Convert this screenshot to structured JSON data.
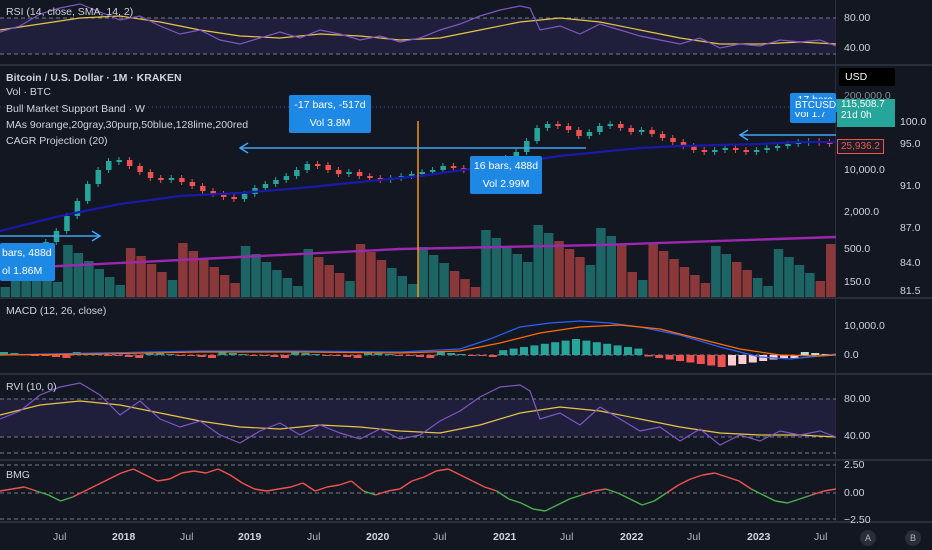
{
  "rsi": {
    "label": "RSI (14, close, SMA, 14, 2)",
    "ticks": [
      "80.00",
      "40.00"
    ]
  },
  "main": {
    "title": "Bitcoin / U.S. Dollar · 1M · KRAKEN",
    "legend": [
      "Vol · BTC",
      "Bull Market Support Band · W",
      "MAs 9orange,20gray,30purp,50blue,128lime,200red",
      "CAGR Projection (20)"
    ],
    "currency_button": "USD",
    "ticks": [
      "200,000.0",
      "100.0",
      "95.0",
      "10,000.0",
      "91.0",
      "2,000.0",
      "87.0",
      "500.0",
      "84.0",
      "150.0",
      "81.5"
    ],
    "price_tag": {
      "symbol": "BTCUSD",
      "price": "115,508.7",
      "countdown": "21d 0h"
    },
    "price_tag2": "25,936.2",
    "measures": [
      {
        "line1": "-17 bars, -517d",
        "line2": "Vol 3.8M"
      },
      {
        "line1": "16 bars, 488d",
        "line2": "Vol 2.99M"
      },
      {
        "line1": "bars, 488d",
        "line2": "ol 1.86M"
      },
      {
        "line1": "-17 bars",
        "line2": "Vol 1.7"
      }
    ]
  },
  "macd": {
    "label": "MACD (12, 26, close)",
    "ticks": [
      "10,000.0",
      "0.0"
    ]
  },
  "rvi": {
    "label": "RVI (10, 0)",
    "ticks": [
      "80.00",
      "40.00"
    ]
  },
  "bmg": {
    "label": "BMG",
    "ticks": [
      "2.50",
      "0.00",
      "−2.50"
    ]
  },
  "xaxis": [
    {
      "t": "Jul",
      "b": false
    },
    {
      "t": "2018",
      "b": true
    },
    {
      "t": "Jul",
      "b": false
    },
    {
      "t": "2019",
      "b": true
    },
    {
      "t": "Jul",
      "b": false
    },
    {
      "t": "2020",
      "b": true
    },
    {
      "t": "Jul",
      "b": false
    },
    {
      "t": "2021",
      "b": true
    },
    {
      "t": "Jul",
      "b": false
    },
    {
      "t": "2022",
      "b": true
    },
    {
      "t": "Jul",
      "b": false
    },
    {
      "t": "2023",
      "b": true
    },
    {
      "t": "Jul",
      "b": false
    }
  ],
  "corner_buttons": [
    "A",
    "B"
  ],
  "colors": {
    "up": "#26a69a",
    "down": "#ef5350",
    "ma_blue": "#1a1aa8",
    "cagr": "#9c27b0",
    "accent": "#1e88e5",
    "orange": "#f7931a"
  }
}
